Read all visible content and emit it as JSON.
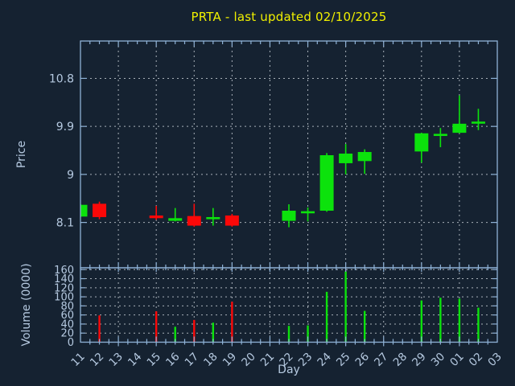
{
  "title": "PRTA - last updated 02/10/2025",
  "colors": {
    "background": "#152231",
    "axis_line": "#8fb2d6",
    "tick_text": "#b5c9e0",
    "grid": "#a8b0b8",
    "title_text": "#f0f000",
    "up": "#0ce20c",
    "down": "#fb0808"
  },
  "chart_data": {
    "type": "candlestick+volume-bar",
    "title": "PRTA - last updated 02/10/2025",
    "xlabel": "Day",
    "ylabel_price": "Price",
    "ylabel_volume": "Volume (0000)",
    "x_categories": [
      "11",
      "12",
      "13",
      "14",
      "15",
      "16",
      "17",
      "18",
      "19",
      "20",
      "21",
      "22",
      "23",
      "24",
      "25",
      "26",
      "27",
      "28",
      "29",
      "30",
      "01",
      "02",
      "03"
    ],
    "x_grid_step": 2,
    "price_ticks": [
      8.1,
      9,
      9.9,
      10.8
    ],
    "price_ylim": [
      7.25,
      11.5
    ],
    "volume_ticks": [
      0,
      20,
      40,
      60,
      80,
      100,
      120,
      140,
      160
    ],
    "volume_ylim": [
      0,
      164
    ],
    "grid": "dashed",
    "candles": [
      {
        "day": "11",
        "open": 8.21,
        "high": 8.44,
        "low": 8.2,
        "close": 8.43,
        "volume": 0
      },
      {
        "day": "12",
        "open": 8.45,
        "high": 8.49,
        "low": 8.16,
        "close": 8.2,
        "volume": 59
      },
      {
        "day": "15",
        "open": 8.23,
        "high": 8.41,
        "low": 8.15,
        "close": 8.18,
        "volume": 68
      },
      {
        "day": "16",
        "open": 8.13,
        "high": 8.37,
        "low": 8.12,
        "close": 8.18,
        "volume": 34
      },
      {
        "day": "17",
        "open": 8.22,
        "high": 8.45,
        "low": 8.02,
        "close": 8.04,
        "volume": 49
      },
      {
        "day": "18",
        "open": 8.18,
        "high": 8.37,
        "low": 8.04,
        "close": 8.2,
        "volume": 43
      },
      {
        "day": "19",
        "open": 8.23,
        "high": 8.26,
        "low": 8.02,
        "close": 8.04,
        "volume": 89
      },
      {
        "day": "22",
        "open": 8.13,
        "high": 8.44,
        "low": 8.01,
        "close": 8.32,
        "volume": 36
      },
      {
        "day": "23",
        "open": 8.29,
        "high": 8.38,
        "low": 8.12,
        "close": 8.31,
        "volume": 37
      },
      {
        "day": "24",
        "open": 8.32,
        "high": 9.4,
        "low": 8.3,
        "close": 9.36,
        "volume": 111
      },
      {
        "day": "25",
        "open": 9.21,
        "high": 9.57,
        "low": 9.0,
        "close": 9.39,
        "volume": 156
      },
      {
        "day": "26",
        "open": 9.25,
        "high": 9.47,
        "low": 9.01,
        "close": 9.42,
        "volume": 69
      },
      {
        "day": "29",
        "open": 9.43,
        "high": 9.78,
        "low": 9.22,
        "close": 9.77,
        "volume": 92
      },
      {
        "day": "30",
        "open": 9.73,
        "high": 9.87,
        "low": 9.51,
        "close": 9.76,
        "volume": 98
      },
      {
        "day": "01",
        "open": 9.78,
        "high": 10.48,
        "low": 9.77,
        "close": 9.95,
        "volume": 96
      },
      {
        "day": "02",
        "open": 9.96,
        "high": 10.23,
        "low": 9.83,
        "close": 9.99,
        "volume": 76
      }
    ]
  }
}
